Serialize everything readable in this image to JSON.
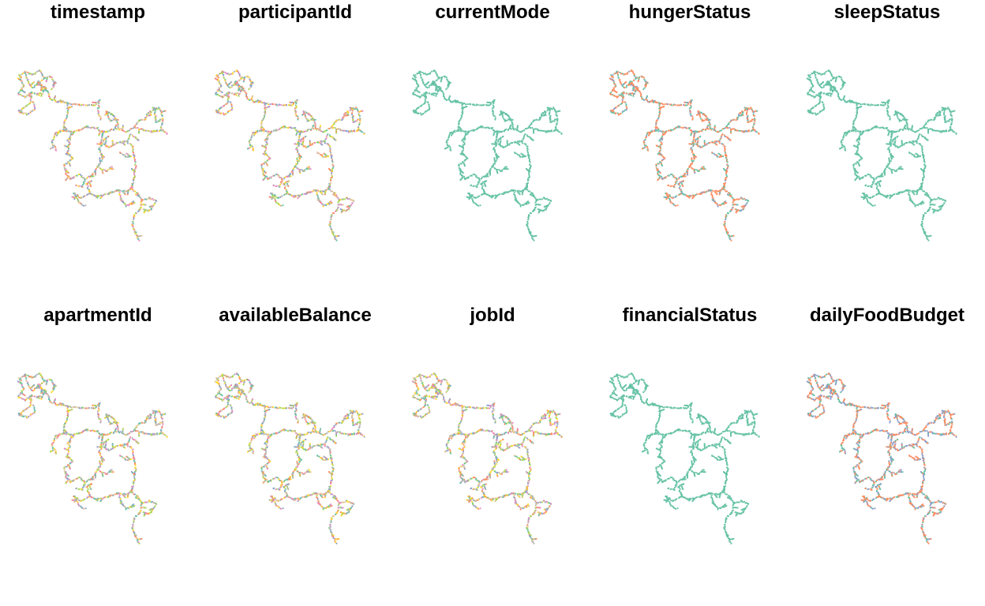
{
  "panels": [
    {
      "title": "timestamp",
      "scheme": "multi"
    },
    {
      "title": "participantId",
      "scheme": "multi"
    },
    {
      "title": "currentMode",
      "scheme": "single"
    },
    {
      "title": "hungerStatus",
      "scheme": "hunger"
    },
    {
      "title": "sleepStatus",
      "scheme": "single"
    },
    {
      "title": "apartmentId",
      "scheme": "multi"
    },
    {
      "title": "availableBalance",
      "scheme": "multi"
    },
    {
      "title": "jobId",
      "scheme": "multi"
    },
    {
      "title": "financialStatus",
      "scheme": "single"
    },
    {
      "title": "dailyFoodBudget",
      "scheme": "budget"
    }
  ],
  "colors": {
    "palette": [
      "#66c2a5",
      "#fc8d62",
      "#8da0cb",
      "#e78ac3",
      "#a6d854",
      "#ffd92f",
      "#e5c494",
      "#b3b3b3"
    ],
    "single": "#66c2a5",
    "hunger": [
      "#fc8d62",
      "#66c2a5",
      "#8da0cb"
    ],
    "budget": [
      "#fc8d62",
      "#8da0cb",
      "#66c2a5"
    ]
  }
}
